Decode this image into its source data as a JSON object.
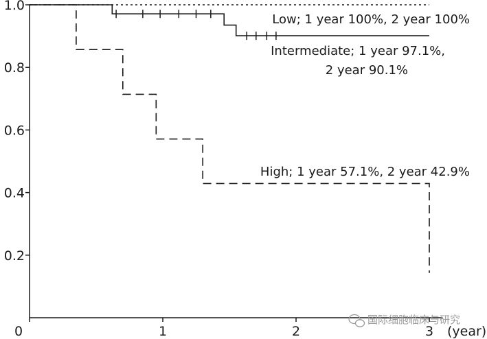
{
  "chart_data": {
    "type": "line",
    "chart_kind": "kaplan-meier step curve",
    "xlabel": "(year)",
    "ylabel": "",
    "xlim": [
      0,
      3.1
    ],
    "ylim": [
      0,
      1.0
    ],
    "x_ticks": [
      0,
      1,
      2,
      3
    ],
    "x_tick_labels": [
      "0",
      "1",
      "2",
      "3"
    ],
    "y_ticks": [
      0.2,
      0.4,
      0.6,
      0.8,
      1.0
    ],
    "y_tick_labels": [
      "0.2",
      "0.4",
      "0.6",
      "0.8",
      "1.0"
    ],
    "grid": false,
    "legend": "none (direct labels)",
    "series": [
      {
        "name": "Low",
        "line_style": "dotted",
        "color": "#1a1a1a",
        "steps": [
          [
            0,
            1.0
          ],
          [
            3.0,
            1.0
          ]
        ],
        "censor_x": [],
        "label": "Low; 1 year 100%, 2 year 100%"
      },
      {
        "name": "Intermediate",
        "line_style": "solid",
        "color": "#1a1a1a",
        "steps": [
          [
            0,
            1.0
          ],
          [
            0.62,
            1.0
          ],
          [
            0.62,
            0.971
          ],
          [
            1.46,
            0.971
          ],
          [
            1.46,
            0.935
          ],
          [
            1.55,
            0.935
          ],
          [
            1.55,
            0.901
          ],
          [
            3.0,
            0.901
          ]
        ],
        "censor_x": [
          0.65,
          0.85,
          0.98,
          1.12,
          1.25,
          1.36,
          1.63,
          1.7,
          1.78,
          1.85
        ],
        "label": "Intermediate; 1 year 97.1%,\n2 year 90.1%",
        "label_lines": [
          "Intermediate; 1 year 97.1%,",
          "2 year 90.1%"
        ]
      },
      {
        "name": "High",
        "line_style": "dashed",
        "color": "#1a1a1a",
        "steps": [
          [
            0,
            1.0
          ],
          [
            0.35,
            1.0
          ],
          [
            0.35,
            0.857
          ],
          [
            0.7,
            0.857
          ],
          [
            0.7,
            0.714
          ],
          [
            0.95,
            0.714
          ],
          [
            0.95,
            0.571
          ],
          [
            1.3,
            0.571
          ],
          [
            1.3,
            0.429
          ],
          [
            3.0,
            0.429
          ],
          [
            3.0,
            0.143
          ]
        ],
        "censor_x": [],
        "label": "High; 1 year 57.1%, 2 year 42.9%"
      }
    ]
  },
  "watermark": {
    "text": "国际细胞临床与研究",
    "icon": "wechat-icon",
    "color": "#9a9a9a"
  }
}
